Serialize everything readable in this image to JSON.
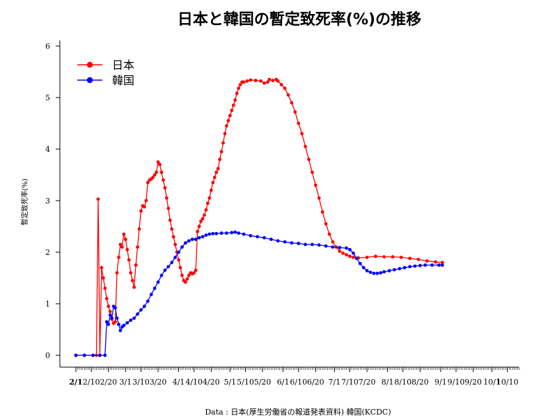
{
  "chart_data": {
    "type": "line",
    "title": "日本と韓国の暫定致死率(%)の推移",
    "ylabel": "暫定致死率(%)",
    "xlabel": "",
    "source": "Data : 日本(厚生労働省の報道発表資料) 韓国(KCDC)",
    "ylim": [
      0,
      6
    ],
    "yticks": [
      "0",
      "1",
      "2",
      "3",
      "4",
      "5",
      "6"
    ],
    "xlim": [
      0,
      259
    ],
    "x_unit": "days from 2/1",
    "xticks": [
      {
        "label": "2/1",
        "day": 0,
        "bold": true
      },
      {
        "label": "2/10",
        "day": 9
      },
      {
        "label": "2/20",
        "day": 19
      },
      {
        "label": "3/1",
        "day": 29
      },
      {
        "label": "3/10",
        "day": 38
      },
      {
        "label": "3/20",
        "day": 48
      },
      {
        "label": "4/1",
        "day": 60
      },
      {
        "label": "4/10",
        "day": 69
      },
      {
        "label": "4/20",
        "day": 79
      },
      {
        "label": "5/1",
        "day": 90
      },
      {
        "label": "5/10",
        "day": 99
      },
      {
        "label": "5/20",
        "day": 109
      },
      {
        "label": "6/1",
        "day": 121
      },
      {
        "label": "6/10",
        "day": 130
      },
      {
        "label": "6/20",
        "day": 140
      },
      {
        "label": "7/1",
        "day": 151
      },
      {
        "label": "7/10",
        "day": 160
      },
      {
        "label": "7/20",
        "day": 170
      },
      {
        "label": "8/1",
        "day": 182
      },
      {
        "label": "8/10",
        "day": 191
      },
      {
        "label": "8/20",
        "day": 201
      },
      {
        "label": "9/1",
        "day": 213
      },
      {
        "label": "9/10",
        "day": 222
      },
      {
        "label": "9/20",
        "day": 232
      },
      {
        "label": "10/1",
        "day": 243
      },
      {
        "label": "10/10",
        "day": 252
      }
    ],
    "legend_position": "top-left",
    "series": [
      {
        "name": "日本",
        "color": "#ff0000",
        "points": [
          [
            0,
            0
          ],
          [
            5,
            0
          ],
          [
            10,
            0
          ],
          [
            12,
            0
          ],
          [
            13,
            3.03
          ],
          [
            14,
            0
          ],
          [
            15,
            1.7
          ],
          [
            16,
            1.5
          ],
          [
            17,
            1.3
          ],
          [
            18,
            1.1
          ],
          [
            19,
            0.95
          ],
          [
            20,
            0.85
          ],
          [
            21,
            0.7
          ],
          [
            22,
            0.62
          ],
          [
            23,
            0.65
          ],
          [
            24,
            1.6
          ],
          [
            25,
            1.9
          ],
          [
            26,
            2.15
          ],
          [
            27,
            2.1
          ],
          [
            28,
            2.35
          ],
          [
            29,
            2.25
          ],
          [
            30,
            2.05
          ],
          [
            31,
            1.85
          ],
          [
            32,
            1.6
          ],
          [
            33,
            1.45
          ],
          [
            34,
            1.32
          ],
          [
            35,
            1.75
          ],
          [
            36,
            2.1
          ],
          [
            37,
            2.45
          ],
          [
            38,
            2.8
          ],
          [
            39,
            2.9
          ],
          [
            40,
            2.88
          ],
          [
            41,
            3.0
          ],
          [
            42,
            3.35
          ],
          [
            43,
            3.4
          ],
          [
            44,
            3.42
          ],
          [
            45,
            3.45
          ],
          [
            46,
            3.5
          ],
          [
            47,
            3.55
          ],
          [
            48,
            3.75
          ],
          [
            49,
            3.7
          ],
          [
            50,
            3.55
          ],
          [
            51,
            3.4
          ],
          [
            52,
            3.25
          ],
          [
            53,
            3.05
          ],
          [
            54,
            2.85
          ],
          [
            55,
            2.62
          ],
          [
            56,
            2.45
          ],
          [
            57,
            2.3
          ],
          [
            58,
            2.15
          ],
          [
            59,
            2.0
          ],
          [
            60,
            1.85
          ],
          [
            61,
            1.7
          ],
          [
            62,
            1.55
          ],
          [
            63,
            1.45
          ],
          [
            64,
            1.42
          ],
          [
            65,
            1.48
          ],
          [
            66,
            1.55
          ],
          [
            67,
            1.6
          ],
          [
            68,
            1.58
          ],
          [
            69,
            1.6
          ],
          [
            70,
            1.65
          ],
          [
            71,
            2.4
          ],
          [
            72,
            2.5
          ],
          [
            73,
            2.6
          ],
          [
            74,
            2.65
          ],
          [
            75,
            2.72
          ],
          [
            76,
            2.82
          ],
          [
            77,
            2.95
          ],
          [
            78,
            3.05
          ],
          [
            79,
            3.2
          ],
          [
            80,
            3.35
          ],
          [
            81,
            3.45
          ],
          [
            82,
            3.55
          ],
          [
            83,
            3.62
          ],
          [
            84,
            3.8
          ],
          [
            85,
            3.95
          ],
          [
            86,
            4.12
          ],
          [
            87,
            4.3
          ],
          [
            88,
            4.45
          ],
          [
            89,
            4.55
          ],
          [
            90,
            4.65
          ],
          [
            91,
            4.75
          ],
          [
            92,
            4.85
          ],
          [
            93,
            4.95
          ],
          [
            94,
            5.08
          ],
          [
            95,
            5.18
          ],
          [
            96,
            5.25
          ],
          [
            97,
            5.3
          ],
          [
            98,
            5.3
          ],
          [
            100,
            5.32
          ],
          [
            102,
            5.34
          ],
          [
            105,
            5.33
          ],
          [
            108,
            5.32
          ],
          [
            110,
            5.28
          ],
          [
            112,
            5.3
          ],
          [
            113,
            5.35
          ],
          [
            115,
            5.33
          ],
          [
            117,
            5.35
          ],
          [
            118,
            5.32
          ],
          [
            120,
            5.25
          ],
          [
            122,
            5.18
          ],
          [
            124,
            5.05
          ],
          [
            126,
            4.9
          ],
          [
            128,
            4.72
          ],
          [
            130,
            4.5
          ],
          [
            132,
            4.3
          ],
          [
            134,
            4.05
          ],
          [
            136,
            3.8
          ],
          [
            138,
            3.55
          ],
          [
            140,
            3.3
          ],
          [
            142,
            3.05
          ],
          [
            144,
            2.78
          ],
          [
            146,
            2.55
          ],
          [
            148,
            2.35
          ],
          [
            150,
            2.2
          ],
          [
            152,
            2.1
          ],
          [
            154,
            2.02
          ],
          [
            156,
            1.98
          ],
          [
            158,
            1.95
          ],
          [
            160,
            1.92
          ],
          [
            162,
            1.9
          ],
          [
            165,
            1.89
          ],
          [
            170,
            1.9
          ],
          [
            175,
            1.92
          ],
          [
            180,
            1.91
          ],
          [
            185,
            1.91
          ],
          [
            190,
            1.9
          ],
          [
            195,
            1.88
          ],
          [
            200,
            1.86
          ],
          [
            205,
            1.83
          ],
          [
            210,
            1.81
          ],
          [
            214,
            1.8
          ]
        ]
      },
      {
        "name": "韓国",
        "color": "#0000ff",
        "points": [
          [
            0,
            0
          ],
          [
            5,
            0
          ],
          [
            10,
            0
          ],
          [
            14,
            0
          ],
          [
            17,
            0
          ],
          [
            18,
            0.65
          ],
          [
            19,
            0.6
          ],
          [
            20,
            0.78
          ],
          [
            21,
            0.72
          ],
          [
            22,
            0.95
          ],
          [
            23,
            0.92
          ],
          [
            24,
            0.72
          ],
          [
            25,
            0.6
          ],
          [
            26,
            0.48
          ],
          [
            27,
            0.55
          ],
          [
            28,
            0.58
          ],
          [
            30,
            0.63
          ],
          [
            32,
            0.68
          ],
          [
            34,
            0.72
          ],
          [
            36,
            0.8
          ],
          [
            38,
            0.88
          ],
          [
            40,
            0.95
          ],
          [
            42,
            1.05
          ],
          [
            44,
            1.18
          ],
          [
            46,
            1.3
          ],
          [
            48,
            1.42
          ],
          [
            50,
            1.55
          ],
          [
            52,
            1.65
          ],
          [
            54,
            1.72
          ],
          [
            56,
            1.8
          ],
          [
            58,
            1.9
          ],
          [
            60,
            2.0
          ],
          [
            62,
            2.1
          ],
          [
            64,
            2.18
          ],
          [
            66,
            2.22
          ],
          [
            68,
            2.25
          ],
          [
            70,
            2.25
          ],
          [
            72,
            2.28
          ],
          [
            74,
            2.3
          ],
          [
            76,
            2.33
          ],
          [
            78,
            2.35
          ],
          [
            80,
            2.36
          ],
          [
            82,
            2.36
          ],
          [
            85,
            2.37
          ],
          [
            88,
            2.37
          ],
          [
            91,
            2.38
          ],
          [
            93,
            2.39
          ],
          [
            95,
            2.37
          ],
          [
            98,
            2.35
          ],
          [
            102,
            2.32
          ],
          [
            106,
            2.3
          ],
          [
            110,
            2.28
          ],
          [
            114,
            2.25
          ],
          [
            118,
            2.22
          ],
          [
            122,
            2.2
          ],
          [
            126,
            2.18
          ],
          [
            130,
            2.17
          ],
          [
            134,
            2.15
          ],
          [
            138,
            2.15
          ],
          [
            142,
            2.14
          ],
          [
            146,
            2.12
          ],
          [
            150,
            2.1
          ],
          [
            154,
            2.09
          ],
          [
            158,
            2.08
          ],
          [
            160,
            2.05
          ],
          [
            162,
            1.98
          ],
          [
            164,
            1.88
          ],
          [
            166,
            1.78
          ],
          [
            168,
            1.7
          ],
          [
            170,
            1.64
          ],
          [
            172,
            1.61
          ],
          [
            174,
            1.59
          ],
          [
            176,
            1.59
          ],
          [
            178,
            1.6
          ],
          [
            180,
            1.62
          ],
          [
            183,
            1.64
          ],
          [
            186,
            1.66
          ],
          [
            189,
            1.68
          ],
          [
            192,
            1.7
          ],
          [
            195,
            1.72
          ],
          [
            198,
            1.73
          ],
          [
            201,
            1.74
          ],
          [
            204,
            1.75
          ],
          [
            208,
            1.75
          ],
          [
            212,
            1.75
          ],
          [
            214,
            1.75
          ]
        ]
      }
    ]
  }
}
